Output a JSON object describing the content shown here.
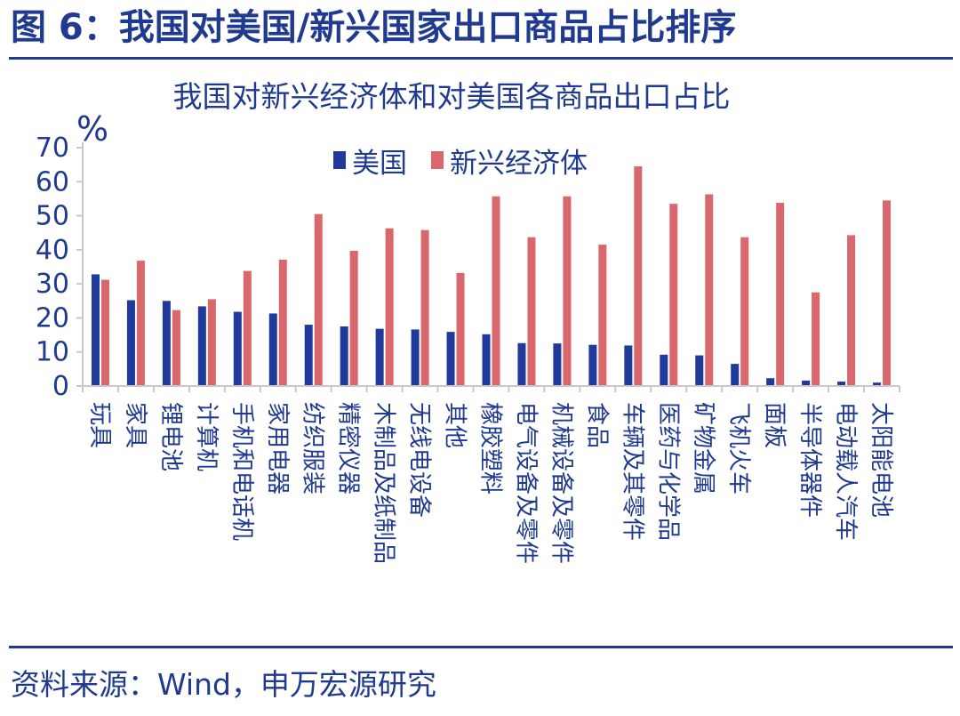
{
  "header": {
    "figure_title": "图 6：我国对美国/新兴国家出口商品占比排序"
  },
  "footer": {
    "source": "资料来源：Wind，申万宏源研究"
  },
  "chart_data": {
    "type": "bar",
    "title": "我国对新兴经济体和对美国各商品出口占比",
    "unit_label": "%",
    "ylim": [
      0,
      70
    ],
    "yticks": [
      0,
      10,
      20,
      30,
      40,
      50,
      60,
      70
    ],
    "legend_position": "top",
    "categories": [
      "玩具",
      "家具",
      "锂电池",
      "计算机",
      "手机和电话机",
      "家用电器",
      "纺织服装",
      "精密仪器",
      "木制品及纸制品",
      "无线电设备",
      "其他",
      "橡胶塑料",
      "电气设备及零件",
      "机械设备及零件",
      "食品",
      "车辆及其零件",
      "医药与化学品",
      "矿物金属",
      "飞机火车",
      "面板",
      "半导体器件",
      "电动载人汽车",
      "太阳能电池"
    ],
    "series": [
      {
        "name": "美国",
        "color": "#1f3a9b",
        "values": [
          32.8,
          25.2,
          25.0,
          23.4,
          21.8,
          21.3,
          18.0,
          17.5,
          16.8,
          16.6,
          15.9,
          15.2,
          12.6,
          12.5,
          12.1,
          11.9,
          9.2,
          9.0,
          6.5,
          2.3,
          1.6,
          1.3,
          1.0
        ]
      },
      {
        "name": "新兴经济体",
        "color": "#d9676b",
        "values": [
          31.2,
          36.8,
          22.3,
          25.5,
          33.8,
          37.1,
          50.5,
          39.7,
          46.3,
          45.8,
          33.2,
          55.7,
          43.7,
          55.7,
          41.5,
          64.5,
          53.5,
          56.3,
          43.7,
          53.8,
          27.5,
          44.3,
          54.5
        ]
      }
    ]
  }
}
